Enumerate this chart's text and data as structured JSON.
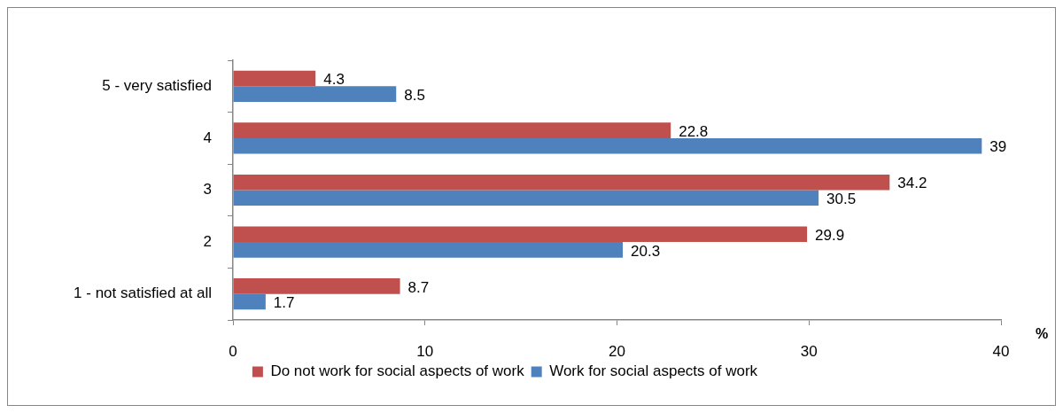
{
  "chart_data": {
    "type": "bar",
    "orientation": "horizontal",
    "categories": [
      "5 - very satisfied",
      "4",
      "3",
      "2",
      "1 - not satisfied at all"
    ],
    "series": [
      {
        "name": "Do not work for social aspects of work",
        "color": "#c0504d",
        "values": [
          4.3,
          22.8,
          34.2,
          29.9,
          8.7
        ]
      },
      {
        "name": "Work for social aspects of work",
        "color": "#4f81bd",
        "values": [
          8.5,
          39,
          30.5,
          20.3,
          1.7
        ]
      }
    ],
    "xlabel": "%",
    "xlim": [
      0,
      40
    ],
    "xticks": [
      0,
      10,
      20,
      30,
      40
    ],
    "data_labels": true,
    "legend": "bottom"
  }
}
